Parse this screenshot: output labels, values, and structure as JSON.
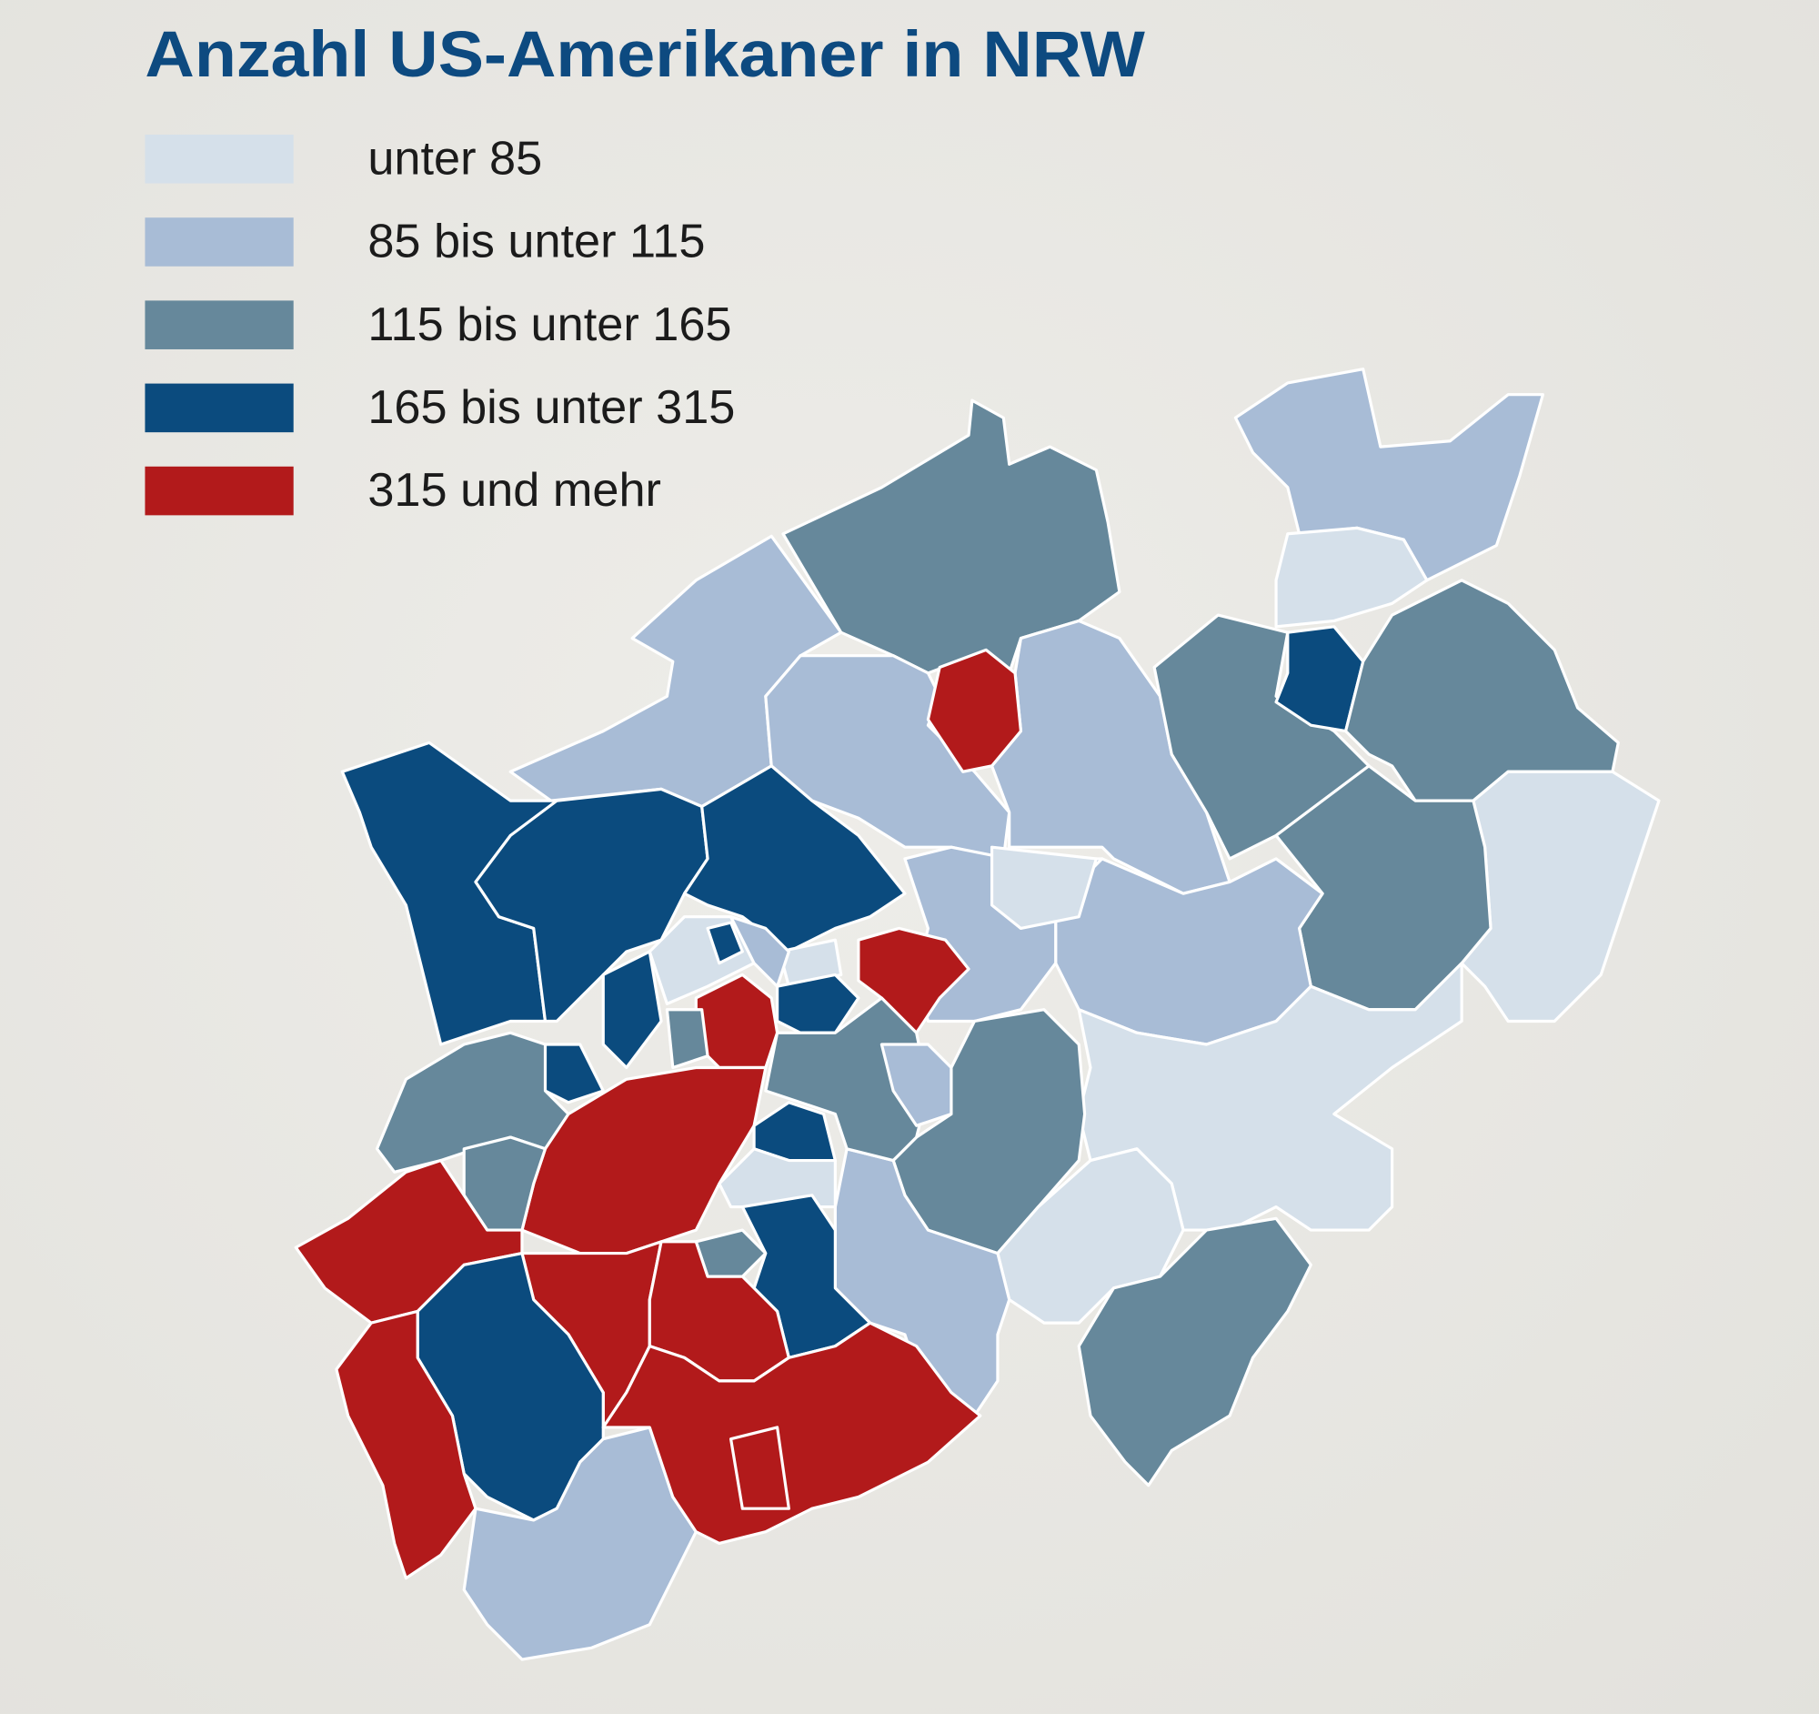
{
  "title": "Anzahl US-Amerikaner in NRW",
  "legend": {
    "items": [
      {
        "label": "unter 85",
        "color": "#d5e0ea"
      },
      {
        "label": "85 bis unter 115",
        "color": "#a8bcd6"
      },
      {
        "label": "115 bis unter 165",
        "color": "#66889b"
      },
      {
        "label": "165 bis unter 315",
        "color": "#0b4b7e"
      },
      {
        "label": "315 und mehr",
        "color": "#b21a1b"
      }
    ]
  }
}
